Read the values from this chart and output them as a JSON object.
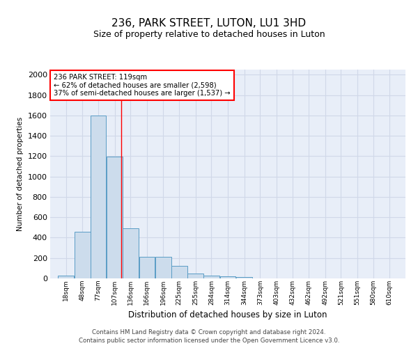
{
  "title": "236, PARK STREET, LUTON, LU1 3HD",
  "subtitle": "Size of property relative to detached houses in Luton",
  "xlabel": "Distribution of detached houses by size in Luton",
  "ylabel": "Number of detached properties",
  "bin_labels": [
    "18sqm",
    "48sqm",
    "77sqm",
    "107sqm",
    "136sqm",
    "166sqm",
    "196sqm",
    "225sqm",
    "255sqm",
    "284sqm",
    "314sqm",
    "344sqm",
    "373sqm",
    "403sqm",
    "432sqm",
    "462sqm",
    "492sqm",
    "521sqm",
    "551sqm",
    "580sqm",
    "610sqm"
  ],
  "bin_left_edges": [
    3,
    33,
    62,
    92,
    121,
    151,
    181,
    210,
    240,
    269,
    299,
    329,
    358,
    388,
    417,
    447,
    477,
    506,
    536,
    565,
    595
  ],
  "bin_width": 29,
  "bar_heights": [
    30,
    460,
    1600,
    1195,
    490,
    210,
    210,
    125,
    45,
    30,
    20,
    15,
    0,
    0,
    0,
    0,
    0,
    0,
    0,
    0,
    0
  ],
  "bar_color": "#ccdcec",
  "bar_edge_color": "#5a9cc5",
  "ylim": [
    0,
    2050
  ],
  "yticks": [
    0,
    200,
    400,
    600,
    800,
    1000,
    1200,
    1400,
    1600,
    1800,
    2000
  ],
  "red_line_x": 119,
  "annotation_title": "236 PARK STREET: 119sqm",
  "annotation_line1": "← 62% of detached houses are smaller (2,598)",
  "annotation_line2": "37% of semi-detached houses are larger (1,537) →",
  "background_color": "#e8eef8",
  "grid_color": "#d0d8e8",
  "footer_line1": "Contains HM Land Registry data © Crown copyright and database right 2024.",
  "footer_line2": "Contains public sector information licensed under the Open Government Licence v3.0."
}
